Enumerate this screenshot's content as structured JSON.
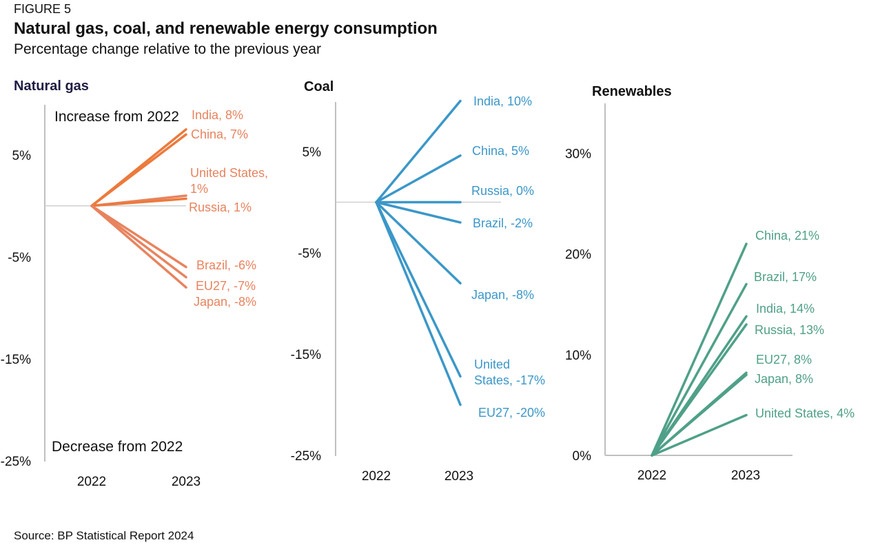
{
  "figure_label": "FIGURE 5",
  "title": "Natural gas, coal, and renewable energy consumption",
  "subtitle": "Percentage change relative to the previous year",
  "source": "Source: BP Statistical Report 2024",
  "colors": {
    "natural_gas": "#e8835e",
    "natural_gas_dark": "#ec7a3c",
    "coal": "#3b97c8",
    "renewables": "#4fa088",
    "axis": "#bfbfbf"
  },
  "chart_data": [
    {
      "type": "line",
      "title": "Natural gas",
      "x": [
        "2022",
        "2023"
      ],
      "ylim": [
        -25,
        10
      ],
      "yticks": [
        5,
        -5,
        -15,
        -25
      ],
      "ytick_labels": [
        "5%",
        "-5%",
        "-15%",
        "-25%"
      ],
      "annotations": {
        "top": "Increase from 2022",
        "bottom": "Decrease from 2022"
      },
      "series": [
        {
          "name": "India",
          "label": "India, 8%",
          "values": [
            0,
            7.5
          ]
        },
        {
          "name": "China",
          "label": "China, 7%",
          "values": [
            0,
            7
          ]
        },
        {
          "name": "United States",
          "label": "United States, 1%",
          "values": [
            0,
            1
          ]
        },
        {
          "name": "Russia",
          "label": "Russia, 1%",
          "values": [
            0,
            0.7
          ]
        },
        {
          "name": "Brazil",
          "label": "Brazil, -6%",
          "values": [
            0,
            -6
          ]
        },
        {
          "name": "EU27",
          "label": "EU27, -7%",
          "values": [
            0,
            -7
          ]
        },
        {
          "name": "Japan",
          "label": "Japan, -8%",
          "values": [
            0,
            -8
          ]
        }
      ]
    },
    {
      "type": "line",
      "title": "Coal",
      "x": [
        "2022",
        "2023"
      ],
      "ylim": [
        -25,
        10
      ],
      "yticks": [
        5,
        -5,
        -15,
        -25
      ],
      "ytick_labels": [
        "5%",
        "-5%",
        "-15%",
        "-25%"
      ],
      "series": [
        {
          "name": "India",
          "label": "India, 10%",
          "values": [
            0,
            10
          ]
        },
        {
          "name": "China",
          "label": "China, 5%",
          "values": [
            0,
            4.6
          ]
        },
        {
          "name": "Russia",
          "label": "Russia, 0%",
          "values": [
            0,
            0
          ]
        },
        {
          "name": "Brazil",
          "label": "Brazil, -2%",
          "values": [
            0,
            -2
          ]
        },
        {
          "name": "Japan",
          "label": "Japan, -8%",
          "values": [
            0,
            -8
          ]
        },
        {
          "name": "United States",
          "label": "United States, -17%",
          "values": [
            0,
            -17.2
          ]
        },
        {
          "name": "EU27",
          "label": "EU27, -20%",
          "values": [
            0,
            -20
          ]
        }
      ]
    },
    {
      "type": "line",
      "title": "Renewables",
      "x": [
        "2022",
        "2023"
      ],
      "ylim": [
        0,
        35
      ],
      "yticks": [
        30,
        20,
        10,
        0
      ],
      "ytick_labels": [
        "30%",
        "20%",
        "10%",
        "0%"
      ],
      "series": [
        {
          "name": "China",
          "label": "China, 21%",
          "values": [
            0,
            21
          ]
        },
        {
          "name": "Brazil",
          "label": "Brazil, 17%",
          "values": [
            0,
            17
          ]
        },
        {
          "name": "India",
          "label": "India, 14%",
          "values": [
            0,
            13.8
          ]
        },
        {
          "name": "Russia",
          "label": "Russia, 13%",
          "values": [
            0,
            13
          ]
        },
        {
          "name": "EU27",
          "label": "EU27, 8%",
          "values": [
            0,
            8.2
          ]
        },
        {
          "name": "Japan",
          "label": "Japan, 8%",
          "values": [
            0,
            8
          ]
        },
        {
          "name": "United States",
          "label": "United States, 4%",
          "values": [
            0,
            4
          ]
        }
      ]
    }
  ]
}
